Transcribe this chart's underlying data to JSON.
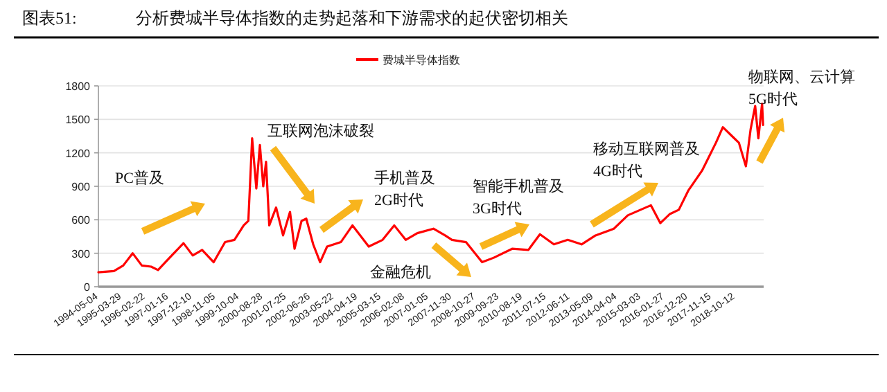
{
  "chart_data": {
    "type": "line",
    "title": "分析费城半导体指数的走势起落和下游需求的起伏密切相关",
    "annotations": [
      "图表51:",
      "PC普及",
      "互联网泡沫破裂",
      "手机普及\n2G时代",
      "金融危机",
      "智能手机普及\n3G时代",
      "移动互联网普及\n4G时代",
      "物联网、云计算\n5G时代"
    ],
    "x": [
      "1994-05-04",
      "1994-12-08",
      "1995-04-17",
      "1995-08-27",
      "1996-01-03",
      "1996-05-12",
      "1996-08-17",
      "1997-01-26",
      "1997-08-09",
      "1997-12-17",
      "1998-04-27",
      "1998-10-06",
      "1999-03-15",
      "1999-07-24",
      "1999-12-01",
      "2000-02-04",
      "2000-03-28",
      "2000-05-26",
      "2000-07-15",
      "2000-08-31",
      "2000-10-09",
      "2000-11-23",
      "2001-02-27",
      "2001-06-05",
      "2001-09-10",
      "2001-11-13",
      "2002-02-19",
      "2002-04-26",
      "2002-08-01",
      "2002-11-06",
      "2003-02-12",
      "2003-08-24",
      "2004-02-03",
      "2004-09-18",
      "2005-03-31",
      "2005-09-10",
      "2006-02-18",
      "2006-07-31",
      "2007-03-14",
      "2007-08-24",
      "2007-11-29",
      "2008-06-12",
      "2009-01-24",
      "2009-07-06",
      "2010-03-21",
      "2010-11-04",
      "2011-04-15",
      "2011-10-27",
      "2012-05-09",
      "2012-11-19",
      "2013-06-02",
      "2014-02-15",
      "2014-08-29",
      "2015-07-19",
      "2015-11-28",
      "2016-04-05",
      "2016-08-13",
      "2016-12-22",
      "2017-07-04",
      "2018-01-15",
      "2018-04-22",
      "2018-08-28",
      "2018-12-03",
      "2019-03-11",
      "2019-05-16",
      "2019-07-19",
      "2019-09-02",
      "2019-10-24",
      "2019-11-07"
    ],
    "series": [
      {
        "name": "费城半导体指数",
        "color": "#ff0000",
        "values": [
          130,
          140,
          190,
          300,
          190,
          180,
          150,
          260,
          390,
          280,
          330,
          220,
          400,
          420,
          550,
          590,
          1330,
          880,
          1270,
          900,
          1120,
          550,
          710,
          460,
          670,
          340,
          590,
          610,
          380,
          220,
          360,
          400,
          550,
          360,
          420,
          550,
          420,
          480,
          520,
          460,
          420,
          400,
          220,
          260,
          340,
          330,
          470,
          380,
          420,
          380,
          460,
          520,
          640,
          730,
          570,
          650,
          690,
          860,
          1040,
          1290,
          1430,
          1350,
          1290,
          1080,
          1410,
          1620,
          1330,
          1640,
          1450
        ]
      }
    ],
    "xlim": [
      "1994-05-04",
      "2019-11-15"
    ],
    "xticks": [
      "1994-05-04",
      "1995-03-29",
      "1996-02-22",
      "1997-01-16",
      "1997-12-10",
      "1998-11-05",
      "1999-10-04",
      "2000-08-28",
      "2001-07-25",
      "2002-06-26",
      "2003-05-22",
      "2004-04-19",
      "2005-03-15",
      "2006-02-08",
      "2007-01-05",
      "2007-11-30",
      "2008-10-27",
      "2009-09-23",
      "2010-08-19",
      "2011-07-15",
      "2012-06-11",
      "2013-05-09",
      "2014-04-04",
      "2015-03-03",
      "2016-01-27",
      "2016-12-20",
      "2017-11-15",
      "2018-10-12"
    ],
    "ylim": [
      0,
      1800
    ],
    "yticks": [
      0,
      300,
      600,
      900,
      1200,
      1500,
      1800
    ],
    "grid": "y",
    "legend": "top"
  }
}
